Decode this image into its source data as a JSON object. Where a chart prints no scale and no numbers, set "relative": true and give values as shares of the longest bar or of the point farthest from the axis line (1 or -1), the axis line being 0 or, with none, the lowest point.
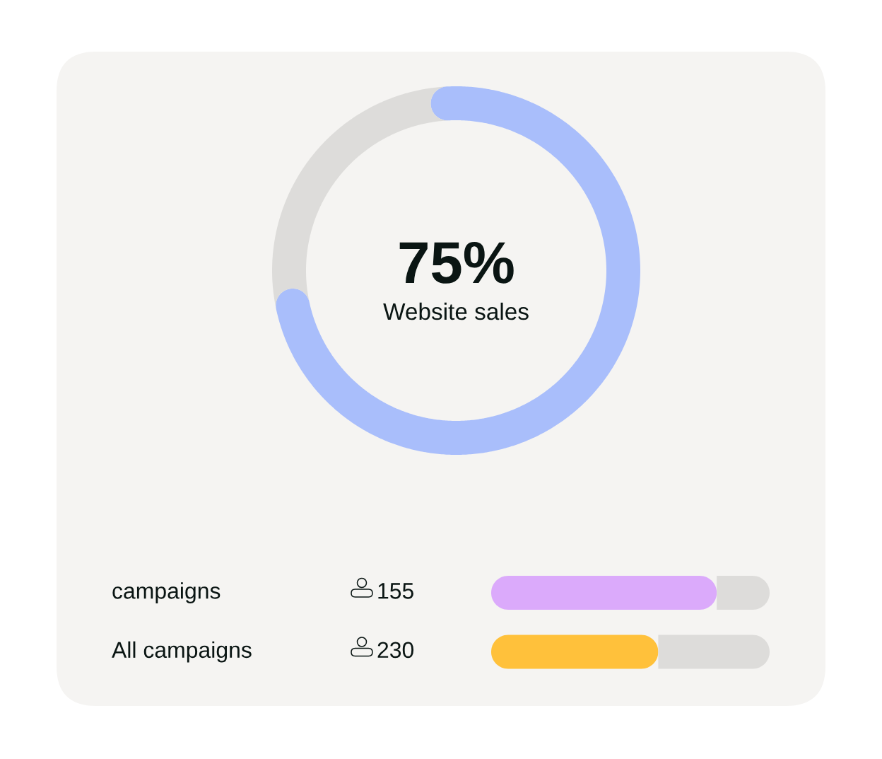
{
  "chart_data": [
    {
      "type": "donut",
      "categories": [
        "Website sales",
        null
      ],
      "values": [
        75,
        25
      ],
      "colors": [
        "#a9befb",
        "#dddcda"
      ],
      "value_labels": [
        "75%",
        null
      ]
    },
    {
      "type": "bar",
      "orientation": "horizontal",
      "stacked": true,
      "relative": true,
      "categories": [
        "campaigns",
        "All campaigns"
      ],
      "series": [
        {
          "values": [
            0.81,
            0.6
          ],
          "colors": [
            "#dbaafb",
            "#ffc13b"
          ]
        },
        {
          "values": [
            0.19,
            0.4
          ],
          "color": "#dddcda"
        }
      ],
      "annotations": [
        "155",
        "230"
      ]
    }
  ]
}
